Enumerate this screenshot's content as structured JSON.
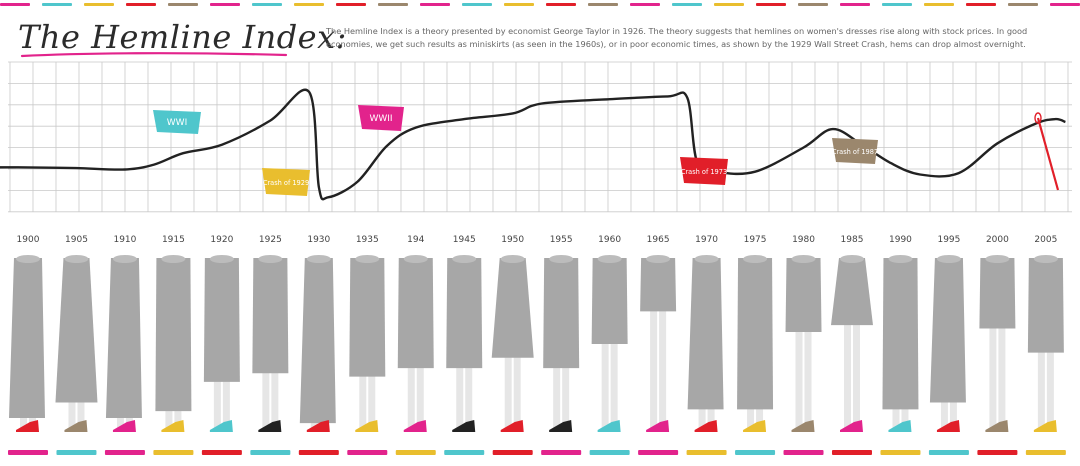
{
  "header": {
    "title": "The Hemline Index:",
    "description": "The Hemline Index is a theory presented by economist George Taylor in 1926. The theory suggests that hemlines on women's dresses rise along with stock prices. In good economies, we get such results as miniskirts (as seen in the 1960s), or in poor economic times, as shown by the 1929 Wall Street Crash, hems can drop almost overnight."
  },
  "colors": {
    "pink": "#e2238c",
    "teal": "#4fc6cc",
    "yellow": "#e9be2e",
    "red": "#e11f29",
    "brown": "#9b876d",
    "skirt": "#a7a7a7",
    "leg": "#e6e6e6",
    "grid": "#c9c9c9",
    "line": "#222222"
  },
  "chart_data": {
    "type": "line",
    "title": "The Hemline Index",
    "x_ticks": [
      "1900",
      "1905",
      "1910",
      "1915",
      "1920",
      "1925",
      "1930",
      "1935",
      "194",
      "1945",
      "1950",
      "1955",
      "1960",
      "1965",
      "1970",
      "1975",
      "1980",
      "1985",
      "1990",
      "1995",
      "2000",
      "2005"
    ],
    "series": [
      {
        "values": [
          [
            1896,
            30
          ],
          [
            1900,
            30
          ],
          [
            1905,
            29.5
          ],
          [
            1910,
            28.5
          ],
          [
            1913,
            32
          ],
          [
            1916,
            40
          ],
          [
            1920,
            46
          ],
          [
            1925,
            63
          ],
          [
            1929,
            83
          ],
          [
            1930,
            16
          ],
          [
            1931,
            9
          ],
          [
            1934,
            20
          ],
          [
            1937,
            45
          ],
          [
            1940,
            58
          ],
          [
            1945,
            64
          ],
          [
            1950,
            68
          ],
          [
            1953,
            75
          ],
          [
            1960,
            78
          ],
          [
            1966,
            80
          ],
          [
            1968,
            79
          ],
          [
            1969,
            34
          ],
          [
            1971,
            27
          ],
          [
            1975,
            27
          ],
          [
            1980,
            44
          ],
          [
            1983,
            57
          ],
          [
            1986,
            46
          ],
          [
            1989,
            33
          ],
          [
            1992,
            25
          ],
          [
            1996,
            26
          ],
          [
            2000,
            47
          ],
          [
            2004,
            61
          ],
          [
            2006,
            64
          ],
          [
            2007,
            62
          ]
        ]
      }
    ],
    "ylim": [
      0,
      100
    ],
    "grid": true,
    "annotations": [
      {
        "label": "WWI",
        "x": 1915,
        "color": "#4fc6cc"
      },
      {
        "label": "Crash of 1929",
        "x": 1925,
        "color": "#e9be2e"
      },
      {
        "label": "WWII",
        "x": 1939,
        "color": "#e2238c"
      },
      {
        "label": "Crash of 1973",
        "x": 1970,
        "color": "#e11f29"
      },
      {
        "label": "Crash of 1987",
        "x": 1985,
        "color": "#9b876d"
      }
    ],
    "hemlines": [
      {
        "year": "1900",
        "hem": 0.93,
        "shape": "long",
        "shoe": "#e11f29"
      },
      {
        "year": "1905",
        "hem": 0.84,
        "shape": "flare",
        "shoe": "#9b876d"
      },
      {
        "year": "1910",
        "hem": 0.93,
        "shape": "long",
        "shoe": "#e2238c"
      },
      {
        "year": "1915",
        "hem": 0.89,
        "shape": "straight",
        "shoe": "#e9be2e"
      },
      {
        "year": "1920",
        "hem": 0.72,
        "shape": "straight",
        "shoe": "#4fc6cc"
      },
      {
        "year": "1925",
        "hem": 0.67,
        "shape": "straight",
        "shoe": "#222222"
      },
      {
        "year": "1930",
        "hem": 0.96,
        "shape": "long",
        "shoe": "#e11f29"
      },
      {
        "year": "1935",
        "hem": 0.69,
        "shape": "straight",
        "shoe": "#e9be2e"
      },
      {
        "year": "194",
        "hem": 0.64,
        "shape": "straight",
        "shoe": "#e2238c"
      },
      {
        "year": "1945",
        "hem": 0.64,
        "shape": "straight",
        "shoe": "#222222"
      },
      {
        "year": "1950",
        "hem": 0.58,
        "shape": "flare",
        "shoe": "#e11f29"
      },
      {
        "year": "1955",
        "hem": 0.64,
        "shape": "straight",
        "shoe": "#222222"
      },
      {
        "year": "1960",
        "hem": 0.5,
        "shape": "straight",
        "shoe": "#4fc6cc"
      },
      {
        "year": "1965",
        "hem": 0.31,
        "shape": "straight",
        "shoe": "#e2238c"
      },
      {
        "year": "1970",
        "hem": 0.88,
        "shape": "long",
        "shoe": "#e11f29"
      },
      {
        "year": "1975",
        "hem": 0.88,
        "shape": "straight",
        "shoe": "#e9be2e"
      },
      {
        "year": "1980",
        "hem": 0.43,
        "shape": "straight",
        "shoe": "#9b876d"
      },
      {
        "year": "1985",
        "hem": 0.39,
        "shape": "flare",
        "shoe": "#e2238c"
      },
      {
        "year": "1990",
        "hem": 0.88,
        "shape": "straight",
        "shoe": "#4fc6cc"
      },
      {
        "year": "1995",
        "hem": 0.84,
        "shape": "long",
        "shoe": "#e11f29"
      },
      {
        "year": "2000",
        "hem": 0.41,
        "shape": "straight",
        "shoe": "#9b876d"
      },
      {
        "year": "2005",
        "hem": 0.55,
        "shape": "straight",
        "shoe": "#e9be2e"
      }
    ]
  }
}
